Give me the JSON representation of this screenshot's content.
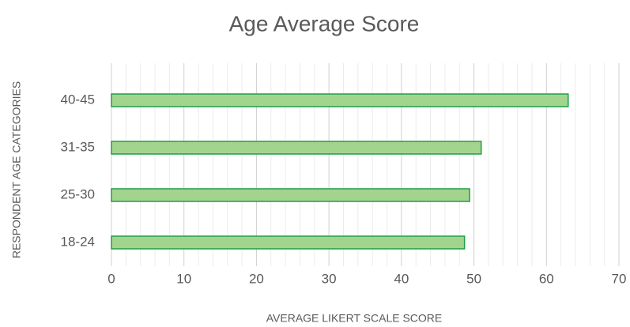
{
  "chart_data": {
    "type": "hbar",
    "title": "Age Average Score",
    "x_label": "AVERAGE LIKERT SCALE SCORE",
    "y_label": "RESPONDENT AGE CATEGORIES",
    "categories": [
      "18-24",
      "25-30",
      "31-35",
      "40-45"
    ],
    "values": [
      48.7,
      49.4,
      51.0,
      63.0
    ],
    "color": "#a3d48e",
    "edge_color": "#1f9e48",
    "xlim": [
      0,
      70
    ],
    "xticks": [
      0,
      10,
      20,
      30,
      40,
      50,
      60,
      70
    ],
    "xminorticks": [
      2,
      4,
      6,
      8,
      12,
      14,
      16,
      18,
      22,
      24,
      26,
      28,
      32,
      34,
      36,
      38,
      42,
      44,
      46,
      48,
      52,
      54,
      56,
      58,
      62,
      64,
      66,
      68
    ],
    "grid": true
  }
}
